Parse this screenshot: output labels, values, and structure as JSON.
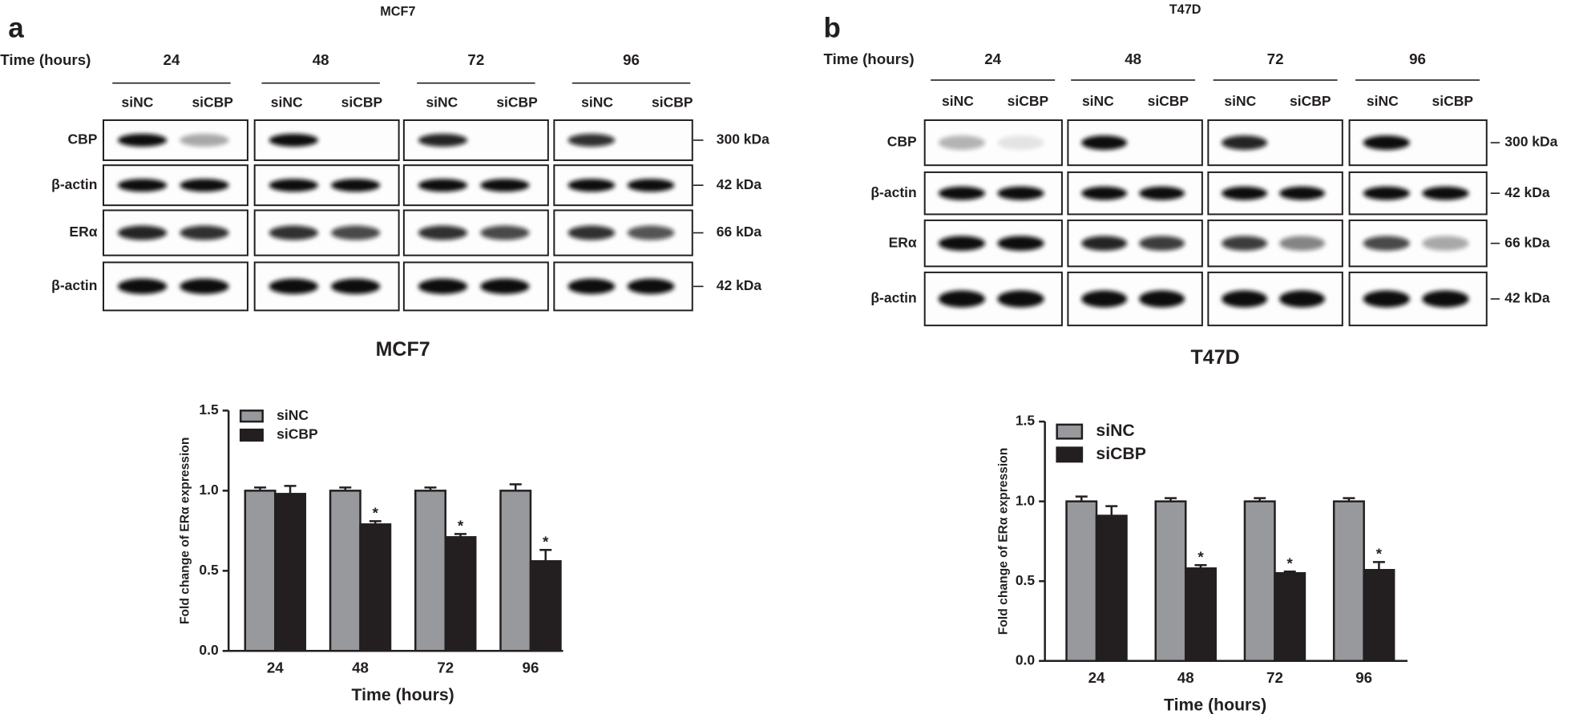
{
  "blots": [
    {
      "letter": "a",
      "cell_line": "MCF7",
      "time_label": "Time (hours)",
      "groups": [
        {
          "time": "24",
          "lanes": [
            "siNC",
            "siCBP"
          ]
        },
        {
          "time": "48",
          "lanes": [
            "siNC",
            "siCBP"
          ]
        },
        {
          "time": "72",
          "lanes": [
            "siNC",
            "siCBP"
          ]
        },
        {
          "time": "96",
          "lanes": [
            "siNC",
            "siCBP"
          ]
        }
      ],
      "rows": [
        {
          "protein": "CBP",
          "size": "300 kDa"
        },
        {
          "protein": "β-actin",
          "size": "42 kDa"
        },
        {
          "protein": "ERα",
          "size": "66 kDa"
        },
        {
          "protein": "β-actin",
          "size": "42 kDa"
        }
      ]
    },
    {
      "letter": "b",
      "cell_line": "T47D",
      "time_label": "Time (hours)",
      "groups": [
        {
          "time": "24",
          "lanes": [
            "siNC",
            "siCBP"
          ]
        },
        {
          "time": "48",
          "lanes": [
            "siNC",
            "siCBP"
          ]
        },
        {
          "time": "72",
          "lanes": [
            "siNC",
            "siCBP"
          ]
        },
        {
          "time": "96",
          "lanes": [
            "siNC",
            "siCBP"
          ]
        }
      ],
      "rows": [
        {
          "protein": "CBP",
          "size": "300 kDa"
        },
        {
          "protein": "β-actin",
          "size": "42 kDa"
        },
        {
          "protein": "ERα",
          "size": "66 kDa"
        },
        {
          "protein": "β-actin",
          "size": "42 kDa"
        }
      ]
    }
  ],
  "chart_data": [
    {
      "type": "bar",
      "title": "MCF7",
      "x_label": "Time (hours)",
      "y_label": "Fold change of ERα expression",
      "categories": [
        "24",
        "48",
        "72",
        "96"
      ],
      "series": [
        {
          "name": "siNC",
          "color": "#97999c",
          "values": [
            1.0,
            1.0,
            1.0,
            1.0
          ],
          "errors": [
            0.02,
            0.02,
            0.02,
            0.04
          ]
        },
        {
          "name": "siCBP",
          "color": "#231f20",
          "values": [
            0.98,
            0.79,
            0.71,
            0.56
          ],
          "errors": [
            0.05,
            0.02,
            0.02,
            0.07
          ],
          "annotations": [
            null,
            "*",
            "*",
            "*"
          ]
        }
      ],
      "ylim": [
        0,
        1.5
      ],
      "yticks": [
        {
          "value": 0,
          "label": "0.0"
        },
        {
          "value": 0.5,
          "label": "0.5"
        },
        {
          "value": 1,
          "label": "1.0"
        },
        {
          "value": 1.5,
          "label": "1.5"
        }
      ],
      "legend": "upper left"
    },
    {
      "type": "bar",
      "title": "T47D",
      "x_label": "Time (hours)",
      "y_label": "Fold change of ERα expression",
      "categories": [
        "24",
        "48",
        "72",
        "96"
      ],
      "series": [
        {
          "name": "siNC",
          "color": "#97999c",
          "values": [
            1.0,
            1.0,
            1.0,
            1.0
          ],
          "errors": [
            0.03,
            0.02,
            0.02,
            0.02
          ]
        },
        {
          "name": "siCBP",
          "color": "#231f20",
          "values": [
            0.91,
            0.58,
            0.55,
            0.57
          ],
          "errors": [
            0.06,
            0.02,
            0.01,
            0.05
          ],
          "annotations": [
            null,
            "*",
            "*",
            "*"
          ]
        }
      ],
      "ylim": [
        0,
        1.5
      ],
      "yticks": [
        {
          "value": 0,
          "label": "0.0"
        },
        {
          "value": 0.5,
          "label": "0.5"
        },
        {
          "value": 1,
          "label": "1.0"
        },
        {
          "value": 1.5,
          "label": "1.5"
        }
      ],
      "legend": "upper left"
    }
  ]
}
